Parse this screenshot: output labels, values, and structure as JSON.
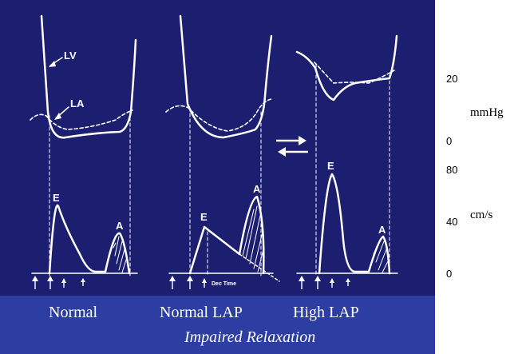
{
  "colors": {
    "background": "#1c1f70",
    "caption_band": "#2c3ea2",
    "trace": "#ffffff",
    "scale_panel": "#ffffff"
  },
  "annotations": {
    "lv": "LV",
    "la": "LA",
    "e_wave": "E",
    "a_wave": "A",
    "dec_time": "Dec Time"
  },
  "scales": {
    "pressure_unit": "mmHg",
    "pressure_ticks": [
      "20",
      "0"
    ],
    "velocity_unit": "cm/s",
    "velocity_ticks": [
      "80",
      "40",
      "0"
    ]
  },
  "panels": {
    "normal": "Normal",
    "normal_lap": "Normal LAP",
    "high_lap": "High LAP",
    "impaired_relaxation": "Impaired Relaxation"
  },
  "icons": {
    "transition": "double-arrow-icon",
    "timing": "timing-arrow-icon"
  }
}
